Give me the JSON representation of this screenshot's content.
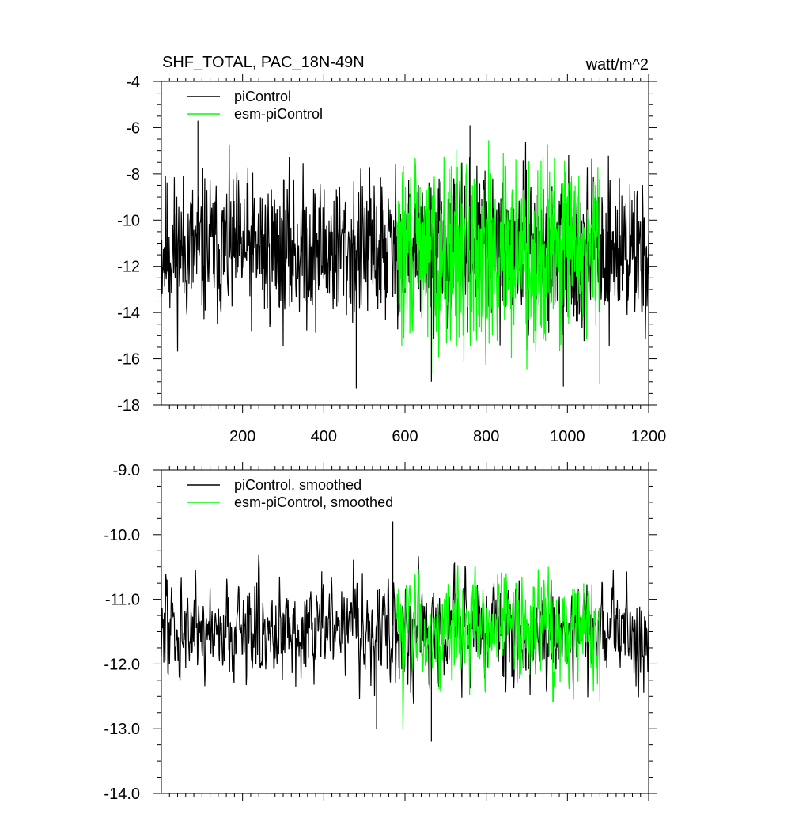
{
  "figure": {
    "title": "SHF_TOTAL, PAC_18N-49N",
    "units": "watt/m^2"
  },
  "chart_data": [
    {
      "type": "line",
      "title": "SHF_TOTAL, PAC_18N-49N",
      "units_label": "watt/m^2",
      "xlim": [
        0,
        1200
      ],
      "ylim": [
        -18,
        -4
      ],
      "x_ticks": [
        200,
        400,
        600,
        800,
        1000,
        1200
      ],
      "x_tick_labels": [
        "200",
        "400",
        "600",
        "800",
        "1000",
        "1200"
      ],
      "y_ticks": [
        -4,
        -6,
        -8,
        -10,
        -12,
        -14,
        -16,
        -18
      ],
      "y_tick_labels": [
        "-4",
        "-6",
        "-8",
        "-10",
        "-12",
        "-14",
        "-16",
        "-18"
      ],
      "legend": {
        "placement": "top-left"
      },
      "series": [
        {
          "name": "piControl",
          "color": "#000000",
          "x_range": [
            0,
            1200
          ],
          "mean": -11.3,
          "amplitude": 1.6,
          "seed": 11
        },
        {
          "name": "esm-piControl",
          "color": "#00ff00",
          "x_range": [
            580,
            1080
          ],
          "mean": -11.4,
          "amplitude": 2.0,
          "seed": 29
        }
      ],
      "annotations": [
        {
          "x": 90,
          "y": -5.7
        },
        {
          "x": 760,
          "y": -5.9
        },
        {
          "x": 480,
          "y": -17.3
        },
        {
          "x": 665,
          "y": -17.0
        },
        {
          "x": 990,
          "y": -17.2
        },
        {
          "x": 1080,
          "y": -17.1
        }
      ]
    },
    {
      "type": "line",
      "title": "",
      "xlim": [
        0,
        1200
      ],
      "ylim": [
        -14.0,
        -9.0
      ],
      "x_ticks": [
        200,
        400,
        600,
        800,
        1000,
        1200
      ],
      "x_tick_labels": [],
      "y_ticks": [
        -9.0,
        -10.0,
        -11.0,
        -12.0,
        -13.0,
        -14.0
      ],
      "y_tick_labels": [
        "-9.0",
        "-10.0",
        "-11.0",
        "-12.0",
        "-13.0",
        "-14.0"
      ],
      "legend": {
        "placement": "top-left"
      },
      "series": [
        {
          "name": "piControl, smoothed",
          "color": "#000000",
          "x_range": [
            0,
            1200
          ],
          "mean": -11.45,
          "amplitude": 0.55,
          "seed": 47
        },
        {
          "name": "esm-piControl, smoothed",
          "color": "#00ff00",
          "x_range": [
            580,
            1080
          ],
          "mean": -11.45,
          "amplitude": 0.6,
          "seed": 83
        }
      ],
      "annotations": [
        {
          "x": 570,
          "y": -9.8
        },
        {
          "x": 530,
          "y": -13.0
        },
        {
          "x": 665,
          "y": -13.2
        }
      ]
    }
  ]
}
